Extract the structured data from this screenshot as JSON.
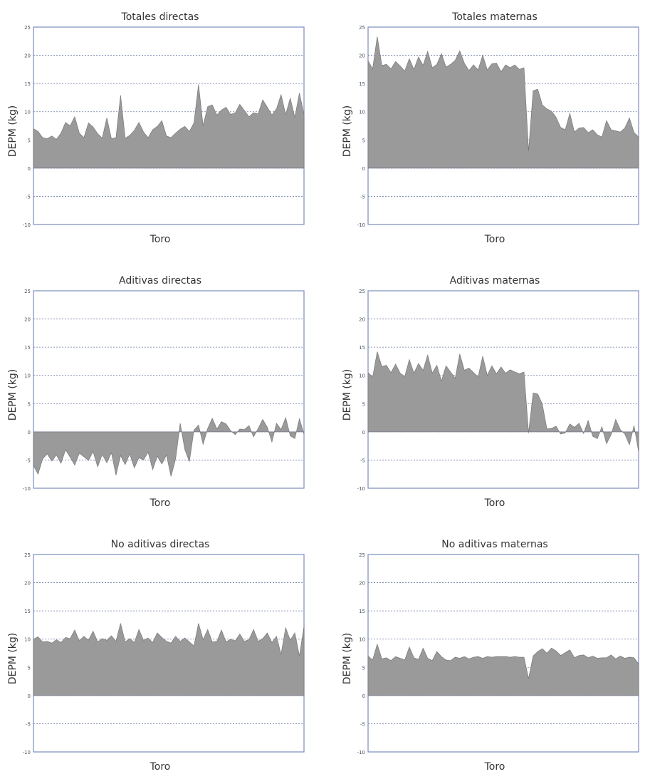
{
  "chart_data": [
    {
      "type": "area",
      "title": "Totales directas",
      "xlabel": "Toro",
      "ylabel": "DEPM (kg)",
      "ylim": [
        -10,
        25
      ],
      "yticks": [
        25,
        20,
        15,
        10,
        5,
        0,
        -5,
        -10
      ],
      "x": [
        1,
        2,
        3,
        4,
        5,
        6,
        7,
        8,
        9,
        10,
        11,
        12,
        13,
        14,
        15,
        16,
        17,
        18,
        19,
        20,
        21,
        22,
        23,
        24,
        25,
        26,
        27,
        28,
        29,
        30,
        31,
        32,
        33,
        34,
        35,
        36,
        37,
        38,
        39,
        40,
        41,
        42,
        43,
        44,
        45,
        46,
        47,
        48,
        49,
        50,
        51,
        52,
        53,
        54,
        55,
        56,
        57,
        58,
        59,
        60
      ],
      "values": [
        7,
        6.5,
        5.4,
        5.2,
        5.7,
        5.1,
        6.2,
        8.1,
        7.5,
        9.1,
        6.2,
        5.4,
        8,
        7.3,
        6.1,
        5.3,
        8.9,
        5.2,
        5.4,
        12.9,
        5.3,
        5.8,
        6.7,
        8.1,
        6.4,
        5.4,
        6.8,
        7.4,
        8.4,
        5.7,
        5.4,
        6.2,
        6.9,
        7.4,
        6.5,
        8,
        14.8,
        7.5,
        10.9,
        11.2,
        9.4,
        10.3,
        10.8,
        9.5,
        9.8,
        11.3,
        10.2,
        9.1,
        9.8,
        9.6,
        12.1,
        10.8,
        9.4,
        10.5,
        13,
        9.5,
        12.4,
        9,
        13.3,
        9.5
      ],
      "grid": true,
      "grid_style": "dotted"
    },
    {
      "type": "area",
      "title": "Totales maternas",
      "xlabel": "Toro",
      "ylabel": "DEPM (kg)",
      "ylim": [
        -10,
        25
      ],
      "yticks": [
        25,
        20,
        15,
        10,
        5,
        0,
        -5,
        -10
      ],
      "x": [
        1,
        2,
        3,
        4,
        5,
        6,
        7,
        8,
        9,
        10,
        11,
        12,
        13,
        14,
        15,
        16,
        17,
        18,
        19,
        20,
        21,
        22,
        23,
        24,
        25,
        26,
        27,
        28,
        29,
        30,
        31,
        32,
        33,
        34,
        35,
        36,
        37,
        38,
        39,
        40,
        41,
        42,
        43,
        44,
        45,
        46,
        47,
        48,
        49,
        50,
        51,
        52,
        53,
        54,
        55,
        56,
        57,
        58,
        59,
        60
      ],
      "values": [
        19,
        17.6,
        23.3,
        18.2,
        18.4,
        17.6,
        18.9,
        18.1,
        17.2,
        19.4,
        17.5,
        19.7,
        18.2,
        20.7,
        17.8,
        18.4,
        20.3,
        17.9,
        18.4,
        19.1,
        20.8,
        18.6,
        17.3,
        18.3,
        17.4,
        20,
        17.4,
        18.5,
        18.6,
        17.1,
        18.3,
        17.8,
        18.3,
        17.5,
        17.8,
        3,
        13.7,
        14,
        11.2,
        10.5,
        10.1,
        9,
        7.2,
        6.8,
        9.7,
        6.4,
        7.1,
        7.2,
        6.3,
        6.8,
        5.9,
        5.5,
        8.4,
        6.8,
        6.6,
        6.4,
        7.1,
        8.9,
        6.3,
        5.5
      ],
      "grid": true,
      "grid_style": "dotted"
    },
    {
      "type": "area",
      "title": "Aditivas directas",
      "xlabel": "Toro",
      "ylabel": "DEPM (kg)",
      "ylim": [
        -10,
        25
      ],
      "yticks": [
        25,
        20,
        15,
        10,
        5,
        0,
        -5,
        -10
      ],
      "x": [
        1,
        2,
        3,
        4,
        5,
        6,
        7,
        8,
        9,
        10,
        11,
        12,
        13,
        14,
        15,
        16,
        17,
        18,
        19,
        20,
        21,
        22,
        23,
        24,
        25,
        26,
        27,
        28,
        29,
        30,
        31,
        32,
        33,
        34,
        35,
        36,
        37,
        38,
        39,
        40,
        41,
        42,
        43,
        44,
        45,
        46,
        47,
        48,
        49,
        50,
        51,
        52,
        53,
        54,
        55,
        56,
        57,
        58,
        59,
        60
      ],
      "values": [
        -6,
        -7.5,
        -4.8,
        -3.9,
        -5.2,
        -4.1,
        -5.6,
        -3.2,
        -4.5,
        -5.9,
        -3.8,
        -4.4,
        -5.1,
        -3.5,
        -6.2,
        -4,
        -5.5,
        -3.7,
        -7.7,
        -4.2,
        -5.8,
        -3.9,
        -6.4,
        -4.6,
        -5,
        -3.6,
        -6.7,
        -4.3,
        -5.7,
        -4.1,
        -7.9,
        -4.8,
        1.5,
        -3.1,
        -5.3,
        0.3,
        1.2,
        -2.2,
        0.6,
        2.4,
        0.5,
        1.8,
        1.4,
        0.2,
        -0.5,
        0.5,
        0.4,
        1.1,
        -0.9,
        0.6,
        2.2,
        0.8,
        -1.8,
        1.5,
        0.4,
        2.5,
        -0.7,
        -1.2,
        2.3,
        -0.4
      ],
      "grid": true,
      "grid_style": "dotted"
    },
    {
      "type": "area",
      "title": "Aditivas maternas",
      "xlabel": "Toro",
      "ylabel": "DEPM (kg)",
      "ylim": [
        -10,
        25
      ],
      "yticks": [
        25,
        20,
        15,
        10,
        5,
        0,
        -5,
        -10
      ],
      "x": [
        1,
        2,
        3,
        4,
        5,
        6,
        7,
        8,
        9,
        10,
        11,
        12,
        13,
        14,
        15,
        16,
        17,
        18,
        19,
        20,
        21,
        22,
        23,
        24,
        25,
        26,
        27,
        28,
        29,
        30,
        31,
        32,
        33,
        34,
        35,
        36,
        37,
        38,
        39,
        40,
        41,
        42,
        43,
        44,
        45,
        46,
        47,
        48,
        49,
        50,
        51,
        52,
        53,
        54,
        55,
        56,
        57,
        58,
        59,
        60
      ],
      "values": [
        10.5,
        9.7,
        14.2,
        11.6,
        11.8,
        10.5,
        12,
        10.4,
        9.8,
        12.8,
        10.4,
        12.1,
        10.9,
        13.6,
        10.4,
        11.8,
        9,
        11.7,
        10.6,
        9.5,
        13.8,
        10.9,
        11.3,
        10.5,
        9.7,
        13.4,
        10,
        11.7,
        10.3,
        11.5,
        10.4,
        11,
        10.6,
        10.3,
        10.6,
        -0.2,
        6.9,
        6.7,
        4.9,
        0.5,
        0.6,
        1,
        -0.4,
        -0.2,
        1.4,
        0.8,
        1.5,
        -0.3,
        2,
        -0.8,
        -1.2,
        0.9,
        -2.1,
        -0.5,
        2.2,
        0.4,
        -0.4,
        -2.3,
        1.1,
        -3.5
      ],
      "grid": true,
      "grid_style": "dotted"
    },
    {
      "type": "area",
      "title": "No aditivas directas",
      "xlabel": "Toro",
      "ylabel": "DEPM (kg)",
      "ylim": [
        -10,
        25
      ],
      "yticks": [
        25,
        20,
        15,
        10,
        5,
        0,
        -5,
        -10
      ],
      "x": [
        1,
        2,
        3,
        4,
        5,
        6,
        7,
        8,
        9,
        10,
        11,
        12,
        13,
        14,
        15,
        16,
        17,
        18,
        19,
        20,
        21,
        22,
        23,
        24,
        25,
        26,
        27,
        28,
        29,
        30,
        31,
        32,
        33,
        34,
        35,
        36,
        37,
        38,
        39,
        40,
        41,
        42,
        43,
        44,
        45,
        46,
        47,
        48,
        49,
        50,
        51,
        52,
        53,
        54,
        55,
        56,
        57,
        58,
        59,
        60
      ],
      "values": [
        10,
        10.4,
        9.5,
        9.6,
        9.3,
        9.9,
        9.4,
        10.3,
        10.1,
        11.6,
        9.7,
        10.5,
        9.8,
        11.4,
        9.5,
        10.1,
        9.8,
        10.6,
        9.6,
        12.8,
        9.5,
        10.1,
        9.4,
        11.7,
        9.8,
        10.2,
        9.4,
        11.1,
        10.3,
        9.6,
        9.3,
        10.5,
        9.6,
        10.2,
        9.5,
        8.8,
        12.8,
        9.9,
        11.7,
        9.5,
        9.6,
        11.6,
        9.5,
        10,
        9.7,
        10.9,
        9.6,
        9.9,
        11.7,
        9.6,
        10.1,
        11.1,
        9.4,
        10.5,
        7.3,
        12,
        9.8,
        11.1,
        7,
        12.2
      ],
      "grid": true,
      "grid_style": "dotted"
    },
    {
      "type": "area",
      "title": "No aditivas maternas",
      "xlabel": "Toro",
      "ylabel": "DEPM (kg)",
      "ylim": [
        -10,
        25
      ],
      "yticks": [
        25,
        20,
        15,
        10,
        5,
        0,
        -5,
        -10
      ],
      "x": [
        1,
        2,
        3,
        4,
        5,
        6,
        7,
        8,
        9,
        10,
        11,
        12,
        13,
        14,
        15,
        16,
        17,
        18,
        19,
        20,
        21,
        22,
        23,
        24,
        25,
        26,
        27,
        28,
        29,
        30,
        31,
        32,
        33,
        34,
        35,
        36,
        37,
        38,
        39,
        40,
        41,
        42,
        43,
        44,
        45,
        46,
        47,
        48,
        49,
        50,
        51,
        52,
        53,
        54,
        55,
        56,
        57,
        58,
        59,
        60
      ],
      "values": [
        7,
        6.3,
        9.1,
        6.5,
        6.7,
        6.2,
        6.9,
        6.6,
        6.3,
        8.6,
        6.7,
        6.4,
        8.4,
        6.6,
        6.2,
        7.8,
        6.9,
        6.3,
        6.2,
        6.8,
        6.6,
        6.9,
        6.5,
        6.8,
        6.9,
        6.6,
        6.9,
        6.8,
        6.9,
        6.9,
        6.9,
        6.8,
        6.9,
        6.8,
        6.8,
        3,
        7,
        7.8,
        8.3,
        7.5,
        8.4,
        7.9,
        7.1,
        7.6,
        8.1,
        6.7,
        7.1,
        7.2,
        6.7,
        7,
        6.6,
        6.7,
        6.7,
        7.2,
        6.5,
        7,
        6.6,
        6.8,
        6.7,
        5.6
      ],
      "grid": true,
      "grid_style": "dotted"
    }
  ]
}
